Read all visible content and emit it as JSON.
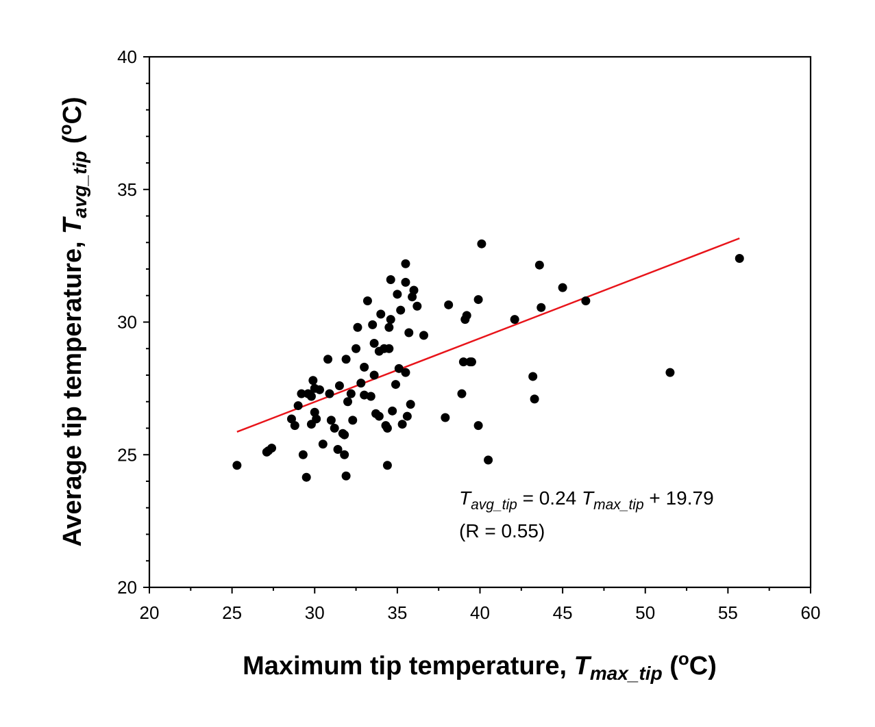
{
  "chart_data": {
    "type": "scatter",
    "title": "",
    "xlabel": {
      "prefix": "Maximum tip temperature, ",
      "var": "T",
      "sub": "max_tip",
      "unit_open": " (",
      "unit_sup": "o",
      "unit_close": "C)"
    },
    "ylabel": {
      "prefix": "Average tip temperature, ",
      "var": "T",
      "sub": "avg_tip",
      "unit_open": " (",
      "unit_sup": "o",
      "unit_close": "C)"
    },
    "xlim": [
      20,
      60
    ],
    "ylim": [
      20,
      40
    ],
    "xticks": [
      20,
      25,
      30,
      35,
      40,
      45,
      50,
      55,
      60
    ],
    "yticks": [
      20,
      25,
      30,
      35,
      40
    ],
    "xtick_labels": [
      "20",
      "25",
      "30",
      "35",
      "40",
      "45",
      "50",
      "55",
      "60"
    ],
    "ytick_labels": [
      "20",
      "25",
      "30",
      "35",
      "40"
    ],
    "colors": {
      "points": "#000000",
      "fit": "#e8141a",
      "axes": "#000000"
    },
    "points": [
      [
        25.3,
        24.6
      ],
      [
        27.1,
        25.1
      ],
      [
        27.2,
        25.15
      ],
      [
        27.4,
        25.25
      ],
      [
        28.6,
        26.35
      ],
      [
        28.8,
        26.1
      ],
      [
        29.0,
        26.85
      ],
      [
        29.2,
        27.3
      ],
      [
        29.3,
        25.0
      ],
      [
        29.5,
        24.15
      ],
      [
        29.6,
        27.3
      ],
      [
        29.8,
        27.2
      ],
      [
        29.8,
        26.15
      ],
      [
        29.9,
        27.8
      ],
      [
        30.0,
        26.6
      ],
      [
        30.0,
        27.5
      ],
      [
        30.1,
        26.35
      ],
      [
        30.3,
        27.45
      ],
      [
        30.5,
        25.4
      ],
      [
        30.8,
        28.6
      ],
      [
        30.9,
        27.3
      ],
      [
        31.0,
        26.3
      ],
      [
        31.2,
        26.0
      ],
      [
        31.4,
        25.2
      ],
      [
        31.5,
        27.6
      ],
      [
        31.7,
        25.8
      ],
      [
        31.8,
        25.0
      ],
      [
        31.8,
        25.75
      ],
      [
        31.9,
        24.2
      ],
      [
        31.9,
        28.6
      ],
      [
        32.0,
        27.0
      ],
      [
        32.2,
        27.3
      ],
      [
        32.3,
        26.3
      ],
      [
        32.5,
        29.0
      ],
      [
        32.6,
        29.8
      ],
      [
        32.8,
        27.7
      ],
      [
        33.0,
        28.3
      ],
      [
        33.0,
        27.25
      ],
      [
        33.2,
        30.8
      ],
      [
        33.4,
        27.2
      ],
      [
        33.5,
        29.9
      ],
      [
        33.6,
        28.0
      ],
      [
        33.6,
        29.2
      ],
      [
        33.7,
        26.55
      ],
      [
        33.9,
        28.9
      ],
      [
        33.9,
        26.45
      ],
      [
        34.0,
        30.3
      ],
      [
        34.2,
        29.0
      ],
      [
        34.3,
        26.1
      ],
      [
        34.4,
        26.0
      ],
      [
        34.4,
        24.6
      ],
      [
        34.5,
        29.0
      ],
      [
        34.5,
        29.8
      ],
      [
        34.6,
        31.6
      ],
      [
        34.6,
        30.1
      ],
      [
        34.7,
        26.65
      ],
      [
        34.9,
        27.65
      ],
      [
        35.0,
        31.05
      ],
      [
        35.1,
        28.25
      ],
      [
        35.2,
        30.45
      ],
      [
        35.3,
        26.15
      ],
      [
        35.5,
        28.1
      ],
      [
        35.5,
        32.2
      ],
      [
        35.5,
        31.5
      ],
      [
        35.6,
        26.45
      ],
      [
        35.7,
        29.6
      ],
      [
        35.8,
        26.9
      ],
      [
        35.9,
        30.95
      ],
      [
        36.0,
        31.2
      ],
      [
        36.2,
        30.6
      ],
      [
        36.6,
        29.5
      ],
      [
        37.9,
        26.4
      ],
      [
        38.1,
        30.65
      ],
      [
        38.9,
        27.3
      ],
      [
        39.0,
        28.5
      ],
      [
        39.1,
        30.1
      ],
      [
        39.2,
        30.25
      ],
      [
        39.4,
        28.5
      ],
      [
        39.5,
        28.5
      ],
      [
        39.9,
        26.1
      ],
      [
        39.9,
        30.85
      ],
      [
        40.1,
        32.95
      ],
      [
        40.5,
        24.8
      ],
      [
        42.1,
        30.1
      ],
      [
        43.2,
        27.95
      ],
      [
        43.3,
        27.1
      ],
      [
        43.6,
        32.15
      ],
      [
        43.7,
        30.55
      ],
      [
        45.0,
        31.3
      ],
      [
        46.4,
        30.8
      ],
      [
        51.5,
        28.1
      ],
      [
        55.7,
        32.4
      ]
    ],
    "fit": {
      "slope": 0.24,
      "intercept": 19.79,
      "x_range": [
        25.3,
        55.7
      ]
    },
    "annotation": {
      "eq_lhs_var": "T",
      "eq_lhs_sub": "avg_tip",
      "eq_mid": " = 0.24 ",
      "eq_rhs_var": "T",
      "eq_rhs_sub": "max_tip",
      "eq_tail": " + 19.79",
      "r_text": "(R = 0.55)",
      "position": "lower-right"
    }
  }
}
